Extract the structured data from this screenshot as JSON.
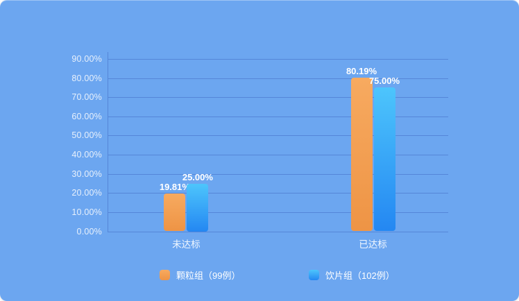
{
  "card": {
    "background": "#6ca6f0",
    "page_background": "#fdfdfd"
  },
  "chart_data": {
    "type": "bar",
    "categories": [
      "未达标",
      "已达标"
    ],
    "series": [
      {
        "name": "颗粒组（99例）",
        "values": [
          19.81,
          80.19
        ],
        "labels": [
          "19.81%",
          "80.19%"
        ],
        "color_top": "#f7aa60",
        "color_bottom": "#ee9445"
      },
      {
        "name": "饮片组（102例）",
        "values": [
          25.0,
          75.0
        ],
        "labels": [
          "25.00%",
          "75.00%"
        ],
        "color_top": "#4dc5fc",
        "color_bottom": "#2487f2"
      }
    ],
    "y_ticks": [
      "90.00%",
      "80.00%",
      "70.00%",
      "60.00%",
      "50.00%",
      "40.00%",
      "30.00%",
      "20.00%",
      "10.00%",
      "0.00%"
    ],
    "ylim": [
      0,
      90
    ],
    "grid": true,
    "legend_position": "bottom",
    "gridline_color": "#5586d8",
    "axis_color": "#5586d8",
    "tick_label_color": "#e8f1fc",
    "value_label_color": "#ffffff",
    "category_label_color": "#f0f7ff",
    "legend_label_color": "#ffffff"
  }
}
